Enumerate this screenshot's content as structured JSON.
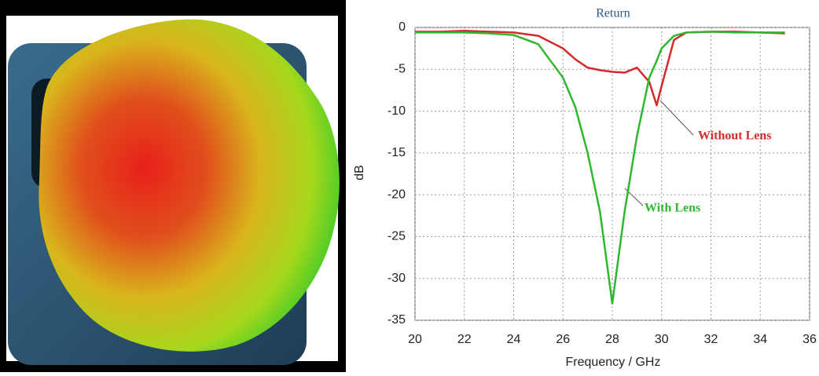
{
  "chart_data": {
    "type": "line",
    "title": "Return",
    "x_label": "Frequency / GHz",
    "y_label": "dB",
    "x": [
      20,
      21,
      22,
      23,
      24,
      25,
      26,
      26.5,
      27,
      27.5,
      28,
      28.5,
      29,
      29.5,
      29.8,
      30,
      30.5,
      31,
      32,
      33,
      34,
      35
    ],
    "series": [
      {
        "name": "Without Lens",
        "color": "#d42a2a",
        "values": [
          -0.5,
          -0.5,
          -0.4,
          -0.5,
          -0.6,
          -1.0,
          -2.5,
          -3.8,
          -4.8,
          -5.1,
          -5.3,
          -5.4,
          -4.8,
          -6.5,
          -9.3,
          -7,
          -1.5,
          -0.6,
          -0.5,
          -0.5,
          -0.6,
          -0.7
        ]
      },
      {
        "name": "With Lens",
        "color": "#2eb82e",
        "values": [
          -0.6,
          -0.6,
          -0.6,
          -0.7,
          -0.9,
          -2,
          -6,
          -9.5,
          -15,
          -22,
          -33,
          -22,
          -13,
          -6,
          -4,
          -2.5,
          -1,
          -0.6,
          -0.5,
          -0.6,
          -0.6,
          -0.6
        ]
      }
    ],
    "xlim": [
      20,
      36
    ],
    "ylim": [
      -35,
      0
    ],
    "xticks": [
      20,
      22,
      24,
      26,
      28,
      30,
      32,
      34,
      36
    ],
    "yticks": [
      0,
      -5,
      -10,
      -15,
      -20,
      -25,
      -30,
      -35
    ],
    "grid": true
  }
}
